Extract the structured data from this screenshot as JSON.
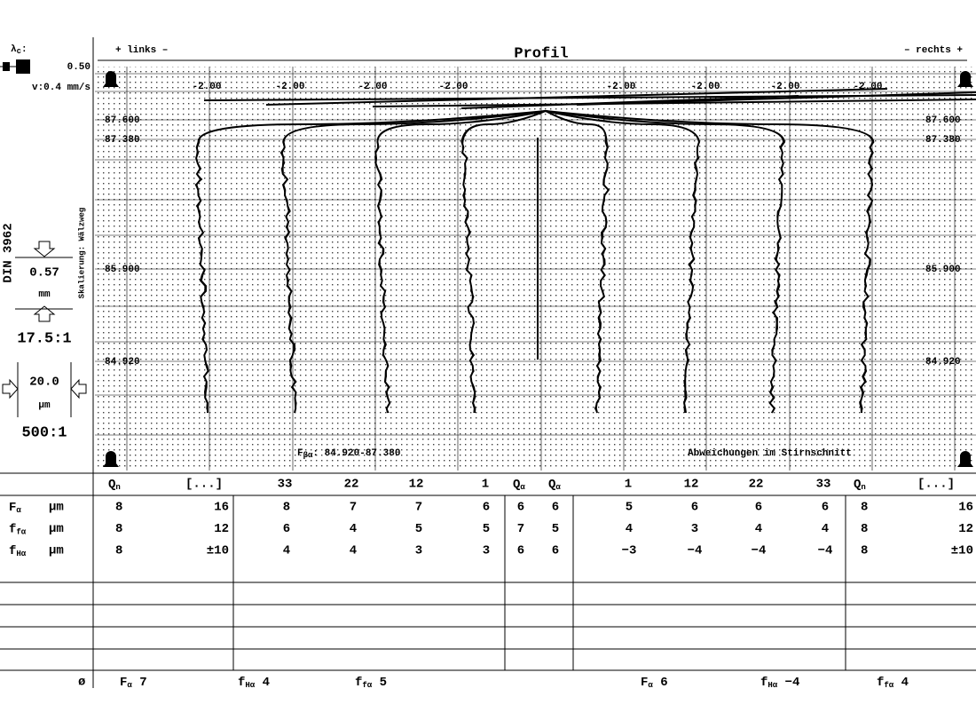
{
  "header": {
    "lambda": {
      "main": "λ",
      "sub": "c",
      "value": ":"
    },
    "lambda_value": "0.50",
    "speed": "v:0.4 mm/s",
    "left": "+ links –",
    "title": "Profil",
    "right": "– rechts +"
  },
  "side": {
    "standard": "DIN 3962",
    "scaling": "Skalierung: Wälzweg",
    "scale1": "0.57",
    "unit1": "mm",
    "ratio1": "17.5:1",
    "scale2": "20.0",
    "unit2": "µm",
    "ratio2": "500:1"
  },
  "plot": {
    "top_labels": [
      "-2.00",
      "-2.00",
      "-2.00",
      "-2.00",
      "-2.00",
      "-2.00",
      "-2.00",
      "-2.00"
    ],
    "level_labels": [
      "87.600",
      "87.380",
      "85.900",
      "84.920"
    ],
    "range_note": {
      "main": "F",
      "sub": "βα",
      "value": ": 84.920-87.380"
    },
    "section_note": "Abweichungen im Stirnschnitt"
  },
  "table": {
    "header": [
      {
        "main": "Q",
        "sub": "n"
      },
      "[...]",
      "33",
      "22",
      "12",
      "1",
      {
        "main": "Q",
        "sub": "α"
      },
      {
        "main": "Q",
        "sub": "α"
      },
      "1",
      "12",
      "22",
      "33",
      {
        "main": "Q",
        "sub": "n"
      },
      "[...]"
    ],
    "rows": [
      {
        "label": {
          "main": "F",
          "sub": "α"
        },
        "unit": "µm",
        "values": [
          "8",
          "16",
          "8",
          "7",
          "7",
          "6",
          "6",
          "6",
          "5",
          "6",
          "6",
          "6",
          "8",
          "16"
        ]
      },
      {
        "label": {
          "main": "f",
          "sub": "fα"
        },
        "unit": "µm",
        "values": [
          "8",
          "12",
          "6",
          "4",
          "5",
          "5",
          "7",
          "5",
          "4",
          "3",
          "4",
          "4",
          "8",
          "12"
        ]
      },
      {
        "label": {
          "main": "f",
          "sub": "Hα"
        },
        "unit": "µm",
        "values": [
          "8",
          "±10",
          "4",
          "4",
          "3",
          "3",
          "6",
          "6",
          "−3",
          "−4",
          "−4",
          "−4",
          "8",
          "±10"
        ]
      }
    ]
  },
  "footer": {
    "symbol": "ø",
    "items": [
      {
        "main": "F",
        "sub": "α",
        "value": " 7"
      },
      {
        "main": "f",
        "sub": "Hα",
        "value": " 4"
      },
      {
        "main": "f",
        "sub": "fα",
        "value": "  5"
      },
      {
        "main": "F",
        "sub": "α",
        "value": " 6"
      },
      {
        "main": "f",
        "sub": "Hα",
        "value": " −4"
      },
      {
        "main": "f",
        "sub": "fα",
        "value": "  4"
      }
    ]
  }
}
